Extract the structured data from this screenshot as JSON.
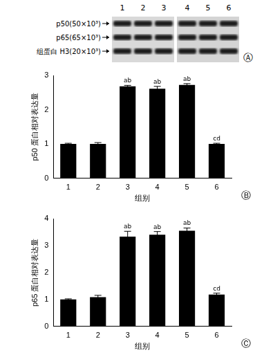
{
  "blot": {
    "panel_label": "Ⓐ",
    "lanes": [
      "1",
      "2",
      "3",
      "4",
      "5",
      "6"
    ],
    "rows": [
      "p50(50×10³)",
      "p65(65×10³)",
      "组蛋白 H3(20×10³)"
    ]
  },
  "chart_data": [
    {
      "type": "bar",
      "panel_label": "Ⓑ",
      "x_label": "组别",
      "y_label": "p50 蛋白相对表达量",
      "categories": [
        "1",
        "2",
        "3",
        "4",
        "5",
        "6"
      ],
      "values": [
        1.0,
        1.0,
        2.68,
        2.61,
        2.72,
        1.0
      ],
      "errors": [
        0.02,
        0.04,
        0.03,
        0.07,
        0.04,
        0.02
      ],
      "annotations": [
        {
          "category": "3",
          "text": "ab"
        },
        {
          "category": "4",
          "text": "ab"
        },
        {
          "category": "5",
          "text": "ab"
        },
        {
          "category": "6",
          "text": "cd"
        }
      ],
      "color": "#000000",
      "ylim": [
        0,
        3
      ],
      "yticks": [
        0,
        1,
        2,
        3
      ],
      "grid": false
    },
    {
      "type": "bar",
      "panel_label": "Ⓒ",
      "x_label": "组别",
      "y_label": "p65 蛋白相对表达量",
      "categories": [
        "1",
        "2",
        "3",
        "4",
        "5",
        "6"
      ],
      "values": [
        1.0,
        1.08,
        3.33,
        3.4,
        3.55,
        1.18
      ],
      "errors": [
        0.02,
        0.07,
        0.2,
        0.12,
        0.1,
        0.05
      ],
      "annotations": [
        {
          "category": "3",
          "text": "ab"
        },
        {
          "category": "4",
          "text": "ab"
        },
        {
          "category": "5",
          "text": "ab"
        },
        {
          "category": "6",
          "text": "cd"
        }
      ],
      "color": "#000000",
      "ylim": [
        0,
        4
      ],
      "yticks": [
        0,
        1,
        2,
        3,
        4
      ],
      "grid": false
    }
  ]
}
